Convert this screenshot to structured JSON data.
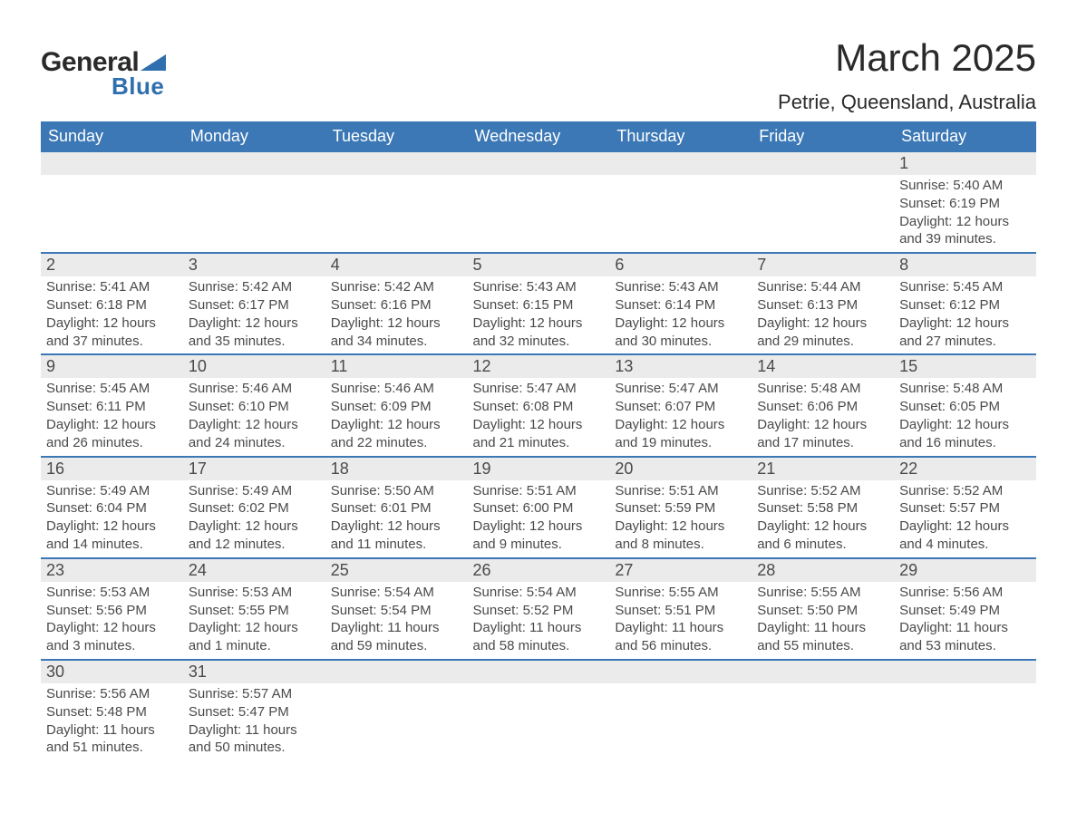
{
  "brand": {
    "name1": "General",
    "name2": "Blue",
    "triangle_color": "#2f6fad"
  },
  "title": "March 2025",
  "location": "Petrie, Queensland, Australia",
  "colors": {
    "header_bg": "#3b78b5",
    "header_text": "#ffffff",
    "daynum_bg": "#ebebeb",
    "text": "#4a4a4a",
    "row_border": "#3b78b5"
  },
  "day_headers": [
    "Sunday",
    "Monday",
    "Tuesday",
    "Wednesday",
    "Thursday",
    "Friday",
    "Saturday"
  ],
  "weeks": [
    [
      null,
      null,
      null,
      null,
      null,
      null,
      {
        "n": "1",
        "sr": "Sunrise: 5:40 AM",
        "ss": "Sunset: 6:19 PM",
        "d1": "Daylight: 12 hours",
        "d2": "and 39 minutes."
      }
    ],
    [
      {
        "n": "2",
        "sr": "Sunrise: 5:41 AM",
        "ss": "Sunset: 6:18 PM",
        "d1": "Daylight: 12 hours",
        "d2": "and 37 minutes."
      },
      {
        "n": "3",
        "sr": "Sunrise: 5:42 AM",
        "ss": "Sunset: 6:17 PM",
        "d1": "Daylight: 12 hours",
        "d2": "and 35 minutes."
      },
      {
        "n": "4",
        "sr": "Sunrise: 5:42 AM",
        "ss": "Sunset: 6:16 PM",
        "d1": "Daylight: 12 hours",
        "d2": "and 34 minutes."
      },
      {
        "n": "5",
        "sr": "Sunrise: 5:43 AM",
        "ss": "Sunset: 6:15 PM",
        "d1": "Daylight: 12 hours",
        "d2": "and 32 minutes."
      },
      {
        "n": "6",
        "sr": "Sunrise: 5:43 AM",
        "ss": "Sunset: 6:14 PM",
        "d1": "Daylight: 12 hours",
        "d2": "and 30 minutes."
      },
      {
        "n": "7",
        "sr": "Sunrise: 5:44 AM",
        "ss": "Sunset: 6:13 PM",
        "d1": "Daylight: 12 hours",
        "d2": "and 29 minutes."
      },
      {
        "n": "8",
        "sr": "Sunrise: 5:45 AM",
        "ss": "Sunset: 6:12 PM",
        "d1": "Daylight: 12 hours",
        "d2": "and 27 minutes."
      }
    ],
    [
      {
        "n": "9",
        "sr": "Sunrise: 5:45 AM",
        "ss": "Sunset: 6:11 PM",
        "d1": "Daylight: 12 hours",
        "d2": "and 26 minutes."
      },
      {
        "n": "10",
        "sr": "Sunrise: 5:46 AM",
        "ss": "Sunset: 6:10 PM",
        "d1": "Daylight: 12 hours",
        "d2": "and 24 minutes."
      },
      {
        "n": "11",
        "sr": "Sunrise: 5:46 AM",
        "ss": "Sunset: 6:09 PM",
        "d1": "Daylight: 12 hours",
        "d2": "and 22 minutes."
      },
      {
        "n": "12",
        "sr": "Sunrise: 5:47 AM",
        "ss": "Sunset: 6:08 PM",
        "d1": "Daylight: 12 hours",
        "d2": "and 21 minutes."
      },
      {
        "n": "13",
        "sr": "Sunrise: 5:47 AM",
        "ss": "Sunset: 6:07 PM",
        "d1": "Daylight: 12 hours",
        "d2": "and 19 minutes."
      },
      {
        "n": "14",
        "sr": "Sunrise: 5:48 AM",
        "ss": "Sunset: 6:06 PM",
        "d1": "Daylight: 12 hours",
        "d2": "and 17 minutes."
      },
      {
        "n": "15",
        "sr": "Sunrise: 5:48 AM",
        "ss": "Sunset: 6:05 PM",
        "d1": "Daylight: 12 hours",
        "d2": "and 16 minutes."
      }
    ],
    [
      {
        "n": "16",
        "sr": "Sunrise: 5:49 AM",
        "ss": "Sunset: 6:04 PM",
        "d1": "Daylight: 12 hours",
        "d2": "and 14 minutes."
      },
      {
        "n": "17",
        "sr": "Sunrise: 5:49 AM",
        "ss": "Sunset: 6:02 PM",
        "d1": "Daylight: 12 hours",
        "d2": "and 12 minutes."
      },
      {
        "n": "18",
        "sr": "Sunrise: 5:50 AM",
        "ss": "Sunset: 6:01 PM",
        "d1": "Daylight: 12 hours",
        "d2": "and 11 minutes."
      },
      {
        "n": "19",
        "sr": "Sunrise: 5:51 AM",
        "ss": "Sunset: 6:00 PM",
        "d1": "Daylight: 12 hours",
        "d2": "and 9 minutes."
      },
      {
        "n": "20",
        "sr": "Sunrise: 5:51 AM",
        "ss": "Sunset: 5:59 PM",
        "d1": "Daylight: 12 hours",
        "d2": "and 8 minutes."
      },
      {
        "n": "21",
        "sr": "Sunrise: 5:52 AM",
        "ss": "Sunset: 5:58 PM",
        "d1": "Daylight: 12 hours",
        "d2": "and 6 minutes."
      },
      {
        "n": "22",
        "sr": "Sunrise: 5:52 AM",
        "ss": "Sunset: 5:57 PM",
        "d1": "Daylight: 12 hours",
        "d2": "and 4 minutes."
      }
    ],
    [
      {
        "n": "23",
        "sr": "Sunrise: 5:53 AM",
        "ss": "Sunset: 5:56 PM",
        "d1": "Daylight: 12 hours",
        "d2": "and 3 minutes."
      },
      {
        "n": "24",
        "sr": "Sunrise: 5:53 AM",
        "ss": "Sunset: 5:55 PM",
        "d1": "Daylight: 12 hours",
        "d2": "and 1 minute."
      },
      {
        "n": "25",
        "sr": "Sunrise: 5:54 AM",
        "ss": "Sunset: 5:54 PM",
        "d1": "Daylight: 11 hours",
        "d2": "and 59 minutes."
      },
      {
        "n": "26",
        "sr": "Sunrise: 5:54 AM",
        "ss": "Sunset: 5:52 PM",
        "d1": "Daylight: 11 hours",
        "d2": "and 58 minutes."
      },
      {
        "n": "27",
        "sr": "Sunrise: 5:55 AM",
        "ss": "Sunset: 5:51 PM",
        "d1": "Daylight: 11 hours",
        "d2": "and 56 minutes."
      },
      {
        "n": "28",
        "sr": "Sunrise: 5:55 AM",
        "ss": "Sunset: 5:50 PM",
        "d1": "Daylight: 11 hours",
        "d2": "and 55 minutes."
      },
      {
        "n": "29",
        "sr": "Sunrise: 5:56 AM",
        "ss": "Sunset: 5:49 PM",
        "d1": "Daylight: 11 hours",
        "d2": "and 53 minutes."
      }
    ],
    [
      {
        "n": "30",
        "sr": "Sunrise: 5:56 AM",
        "ss": "Sunset: 5:48 PM",
        "d1": "Daylight: 11 hours",
        "d2": "and 51 minutes."
      },
      {
        "n": "31",
        "sr": "Sunrise: 5:57 AM",
        "ss": "Sunset: 5:47 PM",
        "d1": "Daylight: 11 hours",
        "d2": "and 50 minutes."
      },
      null,
      null,
      null,
      null,
      null
    ]
  ]
}
